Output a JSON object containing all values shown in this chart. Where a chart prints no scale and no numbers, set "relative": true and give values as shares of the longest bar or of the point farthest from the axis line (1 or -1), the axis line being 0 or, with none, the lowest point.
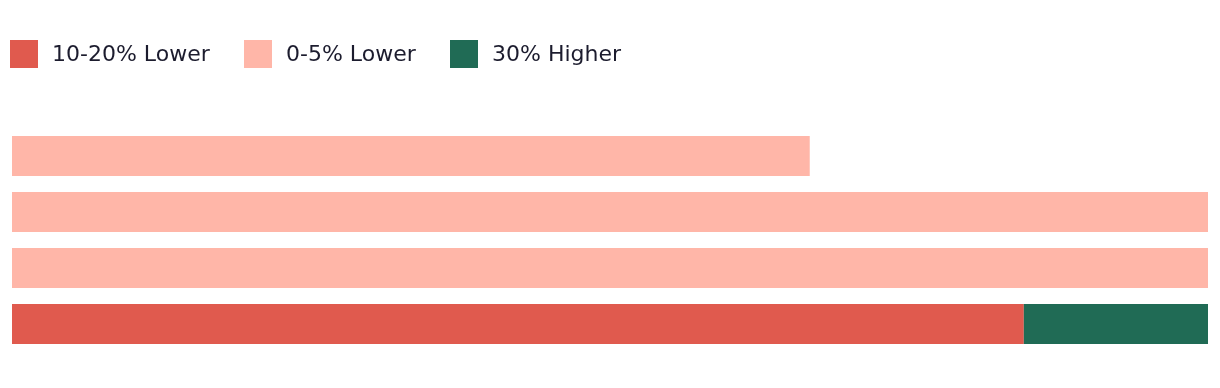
{
  "chart_data": {
    "type": "bar",
    "orientation": "horizontal",
    "stacked": true,
    "relative": true,
    "legend": "top left",
    "categories": [
      null,
      null,
      null,
      null
    ],
    "series": [
      {
        "name": "10-20% Lower",
        "color": "#e05a4e",
        "values": [
          null,
          null,
          null,
          0.846
        ]
      },
      {
        "name": "0-5% Lower",
        "color": "#ffb6a8",
        "values": [
          0.667,
          1,
          1,
          null
        ]
      },
      {
        "name": "30% Higher",
        "color": "#206b55",
        "values": [
          null,
          null,
          null,
          0.154
        ]
      }
    ]
  }
}
